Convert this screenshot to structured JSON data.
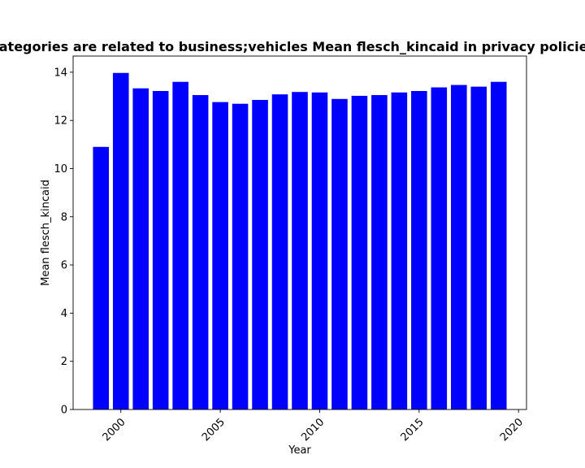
{
  "chart_data": {
    "type": "bar",
    "title": "Categories are related to business;vehicles Mean flesch_kincaid in privacy policies",
    "xlabel": "Year",
    "ylabel": "Mean flesch_kincaid",
    "x": [
      1999,
      2000,
      2001,
      2002,
      2003,
      2004,
      2005,
      2006,
      2007,
      2008,
      2009,
      2010,
      2011,
      2012,
      2013,
      2014,
      2015,
      2016,
      2017,
      2018,
      2019
    ],
    "values": [
      10.9,
      13.97,
      13.33,
      13.22,
      13.6,
      13.05,
      12.76,
      12.69,
      12.85,
      13.08,
      13.18,
      13.16,
      12.89,
      13.02,
      13.05,
      13.16,
      13.22,
      13.37,
      13.47,
      13.4,
      13.6
    ],
    "xlim": [
      1997.6,
      2020.4
    ],
    "ylim": [
      0,
      14.67
    ],
    "xticks": [
      2000,
      2005,
      2010,
      2015,
      2020
    ],
    "yticks": [
      0,
      2,
      4,
      6,
      8,
      10,
      12,
      14
    ],
    "bar_color": "#0000ff",
    "grid": false,
    "legend": "none"
  }
}
